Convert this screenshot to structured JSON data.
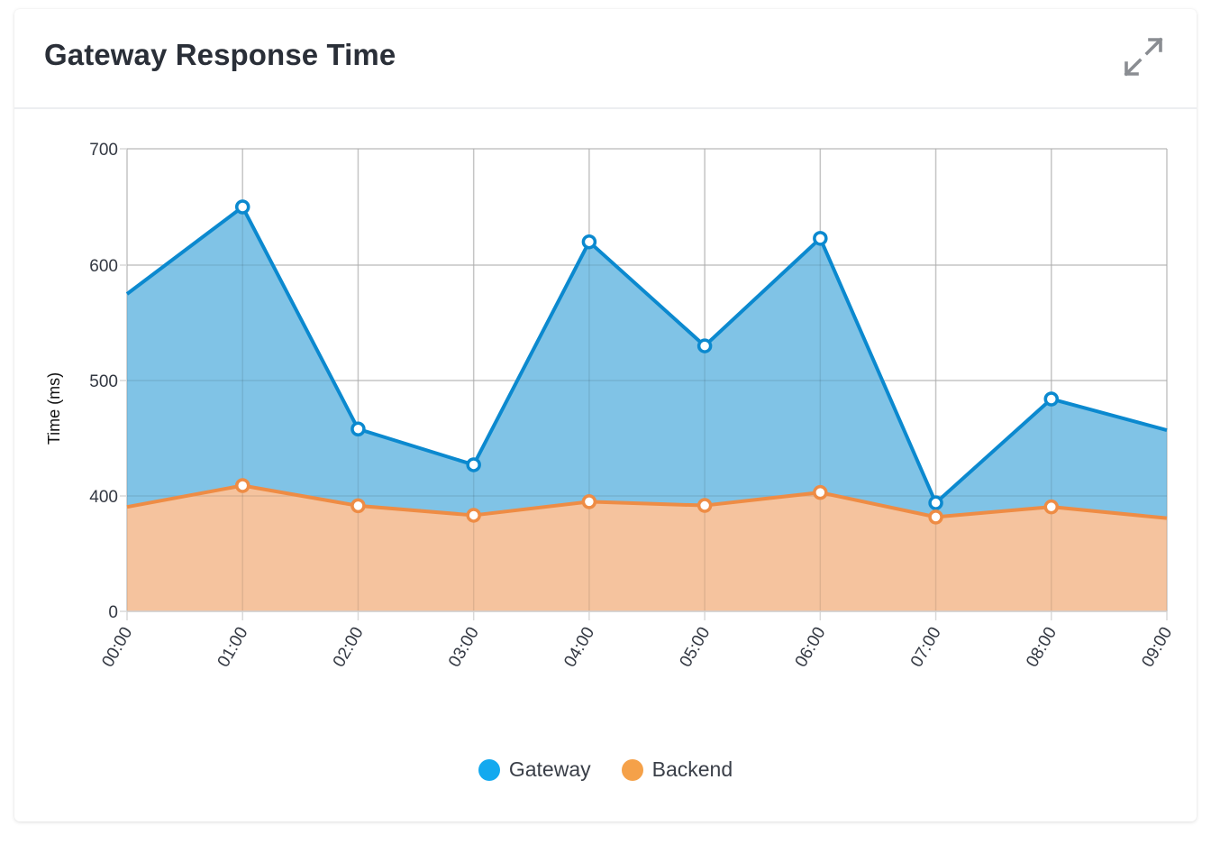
{
  "header": {
    "title": "Gateway Response Time",
    "expand_icon": "expand-icon"
  },
  "colors": {
    "gateway_line": "#0b89cf",
    "gateway_fill": "#80c3e6",
    "backend_line": "#ee8c45",
    "backend_fill": "#f5c39e",
    "legend_gateway": "#13a9ef",
    "legend_backend": "#f5a149",
    "grid": "#d9d9d9"
  },
  "chart_data": {
    "type": "area",
    "title": "Gateway Response Time",
    "xlabel": "",
    "ylabel": "Time (ms)",
    "ylim": [
      0,
      700
    ],
    "ytick_values": [
      0,
      400,
      500,
      600,
      700
    ],
    "ytick_labels": [
      "0",
      "400",
      "500",
      "600",
      "700"
    ],
    "x": [
      "00:00",
      "01:00",
      "02:00",
      "03:00",
      "04:00",
      "05:00",
      "06:00",
      "07:00",
      "08:00",
      "09:00"
    ],
    "grid": true,
    "legend_position": "bottom-center",
    "series": [
      {
        "name": "Gateway",
        "values": [
          575,
          650,
          458,
          427,
          620,
          530,
          623,
          376,
          484,
          457
        ]
      },
      {
        "name": "Backend",
        "values": [
          362,
          409,
          366,
          333,
          380,
          367,
          403,
          327,
          362,
          323
        ]
      }
    ]
  }
}
